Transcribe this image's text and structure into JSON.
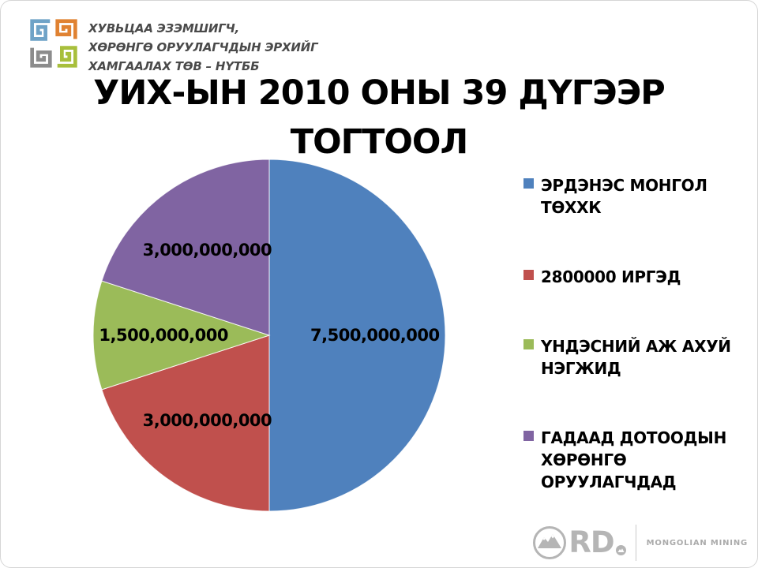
{
  "slide": {
    "org_lines": [
      "ХУВЬЦАА ЭЗЭМШИГЧ,",
      "ХӨРӨНГӨ ОРУУЛАГЧДЫН ЭРХИЙГ",
      "ХАМГААЛАХ ТӨВ – НҮТББ"
    ],
    "footer": {
      "brand": "RD",
      "caption": "MONGOLIAN MINING"
    }
  },
  "chart_data": {
    "type": "pie",
    "title": "УИХ-ЫН 2010 ОНЫ 39 ДҮГЭЭР ТОГТООЛ",
    "legend_position": "right",
    "start_angle_deg": 0,
    "direction": "clockwise",
    "total": 15000000000,
    "slices": [
      {
        "label": "ЭРДЭНЭС МОНГОЛ ТӨХХК",
        "value": 7500000000,
        "display": "7,500,000,000",
        "color": "#4F81BD"
      },
      {
        "label": "2800000 ИРГЭД",
        "value": 3000000000,
        "display": "3,000,000,000",
        "color": "#C0504D"
      },
      {
        "label": "ҮНДЭСНИЙ АЖ АХУЙ НЭГЖИД",
        "value": 1500000000,
        "display": "1,500,000,000",
        "color": "#9BBB59"
      },
      {
        "label": "ГАДААД ДОТООДЫН ХӨРӨНГӨ ОРУУЛАГЧДАД",
        "value": 3000000000,
        "display": "3,000,000,000",
        "color": "#8064A2"
      }
    ]
  },
  "icons": {
    "org_logo_colors": [
      "#6FA3C7",
      "#E08232",
      "#A8BF3C",
      "#8C8C8C"
    ],
    "mountain_logo_color": "#B5B5B5"
  }
}
